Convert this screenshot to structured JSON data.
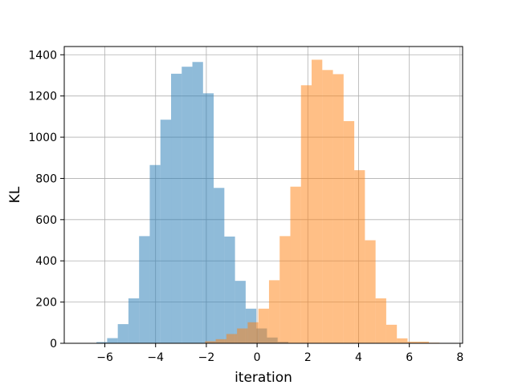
{
  "chart_data": {
    "type": "histogram",
    "xlabel": "iteration",
    "ylabel": "KL",
    "xlim": [
      -7.6,
      8.1
    ],
    "ylim": [
      0,
      1440
    ],
    "xticks": [
      -6,
      -4,
      -2,
      0,
      2,
      4,
      6,
      8
    ],
    "yticks": [
      0,
      200,
      400,
      600,
      800,
      1000,
      1200,
      1400
    ],
    "grid": true,
    "series": [
      {
        "color": "#1f77b4",
        "opacity": 0.5,
        "bins": [
          {
            "x0": -6.33,
            "x1": -5.91,
            "count": 6
          },
          {
            "x0": -5.91,
            "x1": -5.49,
            "count": 25
          },
          {
            "x0": -5.49,
            "x1": -5.07,
            "count": 93
          },
          {
            "x0": -5.07,
            "x1": -4.65,
            "count": 218
          },
          {
            "x0": -4.65,
            "x1": -4.23,
            "count": 520
          },
          {
            "x0": -4.23,
            "x1": -3.81,
            "count": 865
          },
          {
            "x0": -3.81,
            "x1": -3.39,
            "count": 1085
          },
          {
            "x0": -3.39,
            "x1": -2.97,
            "count": 1308
          },
          {
            "x0": -2.97,
            "x1": -2.55,
            "count": 1342
          },
          {
            "x0": -2.55,
            "x1": -2.13,
            "count": 1365
          },
          {
            "x0": -2.13,
            "x1": -1.71,
            "count": 1213
          },
          {
            "x0": -1.71,
            "x1": -1.29,
            "count": 754
          },
          {
            "x0": -1.29,
            "x1": -0.87,
            "count": 518
          },
          {
            "x0": -0.87,
            "x1": -0.45,
            "count": 303
          },
          {
            "x0": -0.45,
            "x1": -0.03,
            "count": 168
          },
          {
            "x0": -0.03,
            "x1": 0.39,
            "count": 72
          },
          {
            "x0": 0.39,
            "x1": 0.81,
            "count": 28
          },
          {
            "x0": 0.81,
            "x1": 1.23,
            "count": 7
          }
        ]
      },
      {
        "color": "#ff7f0e",
        "opacity": 0.5,
        "bins": [
          {
            "x0": -2.05,
            "x1": -1.63,
            "count": 10
          },
          {
            "x0": -1.63,
            "x1": -1.21,
            "count": 20
          },
          {
            "x0": -1.21,
            "x1": -0.79,
            "count": 45
          },
          {
            "x0": -0.79,
            "x1": -0.37,
            "count": 72
          },
          {
            "x0": -0.37,
            "x1": 0.05,
            "count": 102
          },
          {
            "x0": 0.05,
            "x1": 0.47,
            "count": 168
          },
          {
            "x0": 0.47,
            "x1": 0.89,
            "count": 306
          },
          {
            "x0": 0.89,
            "x1": 1.31,
            "count": 520
          },
          {
            "x0": 1.31,
            "x1": 1.73,
            "count": 760
          },
          {
            "x0": 1.73,
            "x1": 2.15,
            "count": 1252
          },
          {
            "x0": 2.15,
            "x1": 2.57,
            "count": 1376
          },
          {
            "x0": 2.57,
            "x1": 2.99,
            "count": 1326
          },
          {
            "x0": 2.99,
            "x1": 3.41,
            "count": 1306
          },
          {
            "x0": 3.41,
            "x1": 3.83,
            "count": 1078
          },
          {
            "x0": 3.83,
            "x1": 4.25,
            "count": 840
          },
          {
            "x0": 4.25,
            "x1": 4.67,
            "count": 500
          },
          {
            "x0": 4.67,
            "x1": 5.09,
            "count": 218
          },
          {
            "x0": 5.09,
            "x1": 5.51,
            "count": 90
          },
          {
            "x0": 5.51,
            "x1": 5.93,
            "count": 24
          },
          {
            "x0": 5.93,
            "x1": 6.35,
            "count": 8
          },
          {
            "x0": 6.35,
            "x1": 6.77,
            "count": 8
          },
          {
            "x0": 6.77,
            "x1": 7.19,
            "count": 3
          }
        ]
      }
    ]
  }
}
